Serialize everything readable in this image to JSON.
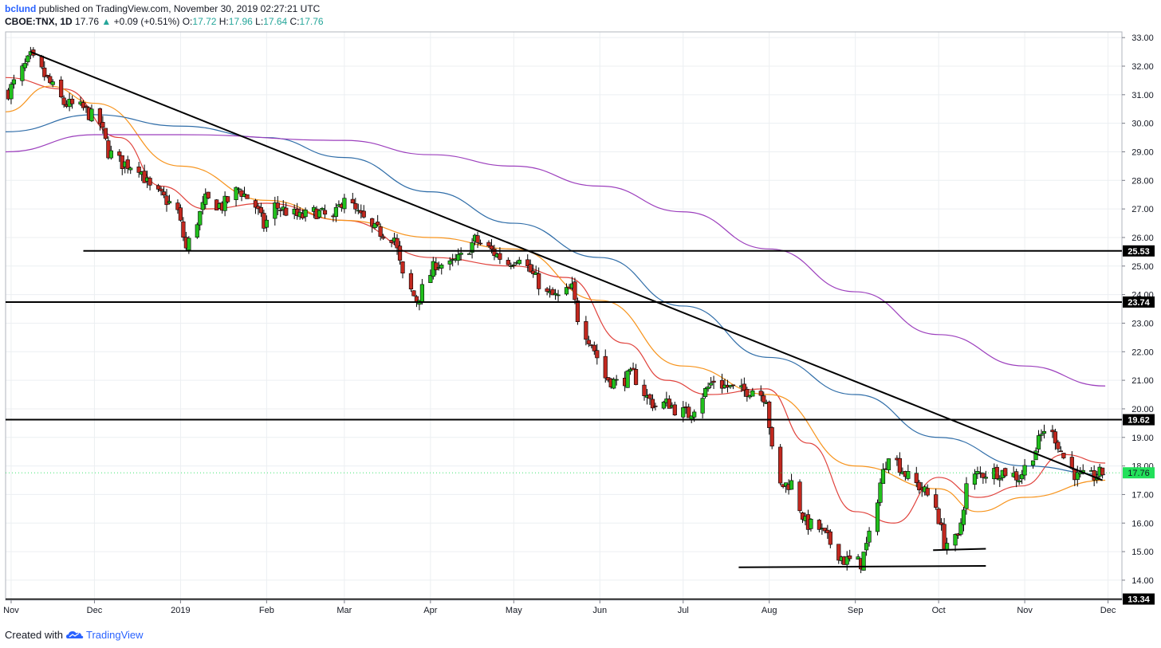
{
  "header": {
    "author": "bclund",
    "published": "published on TradingView.com, November 30, 2019 02:27:21 UTC",
    "symbol": "CBOE:TNX, 1D",
    "last": "17.76",
    "change": "+0.09 (+0.51%)",
    "o_label": "O:",
    "o": "17.72",
    "h_label": "H:",
    "h": "17.96",
    "l_label": "L:",
    "l": "17.64",
    "c_label": "C:",
    "c": "17.76"
  },
  "footer": {
    "created_with": "Created with",
    "brand": "TradingView"
  },
  "colors": {
    "up": "#22c11d",
    "down": "#c2281f",
    "ma_red": "#e0423c",
    "ma_orange": "#f7941d",
    "ma_blue": "#2f6da8",
    "ma_purple": "#9c3fbd",
    "level": "#000000",
    "last_badge": "#22e05a",
    "grid": "#eceff2"
  },
  "chart_data": {
    "type": "candlestick",
    "grid": true,
    "price_axis": "right",
    "y_ticks": [
      "14.00",
      "15.00",
      "16.00",
      "17.00",
      "18.00",
      "19.00",
      "20.00",
      "21.00",
      "22.00",
      "23.00",
      "24.00",
      "25.00",
      "26.00",
      "27.00",
      "28.00",
      "29.00",
      "30.00",
      "31.00",
      "32.00",
      "33.00"
    ],
    "x_ticks": [
      {
        "label": "Nov",
        "date": "2018-11-01"
      },
      {
        "label": "Dec",
        "date": "2018-12-01"
      },
      {
        "label": "2019",
        "date": "2019-01-01"
      },
      {
        "label": "Feb",
        "date": "2019-02-01"
      },
      {
        "label": "Mar",
        "date": "2019-03-01"
      },
      {
        "label": "Apr",
        "date": "2019-04-01"
      },
      {
        "label": "May",
        "date": "2019-05-01"
      },
      {
        "label": "Jun",
        "date": "2019-06-01"
      },
      {
        "label": "Jul",
        "date": "2019-07-01"
      },
      {
        "label": "Aug",
        "date": "2019-08-01"
      },
      {
        "label": "Sep",
        "date": "2019-09-01"
      },
      {
        "label": "Oct",
        "date": "2019-10-01"
      },
      {
        "label": "Nov",
        "date": "2019-11-01"
      },
      {
        "label": "Dec",
        "date": "2019-12-01"
      }
    ],
    "ylim": [
      13.3,
      33.2
    ],
    "xlim": [
      "2018-10-30",
      "2019-12-06"
    ],
    "levels": [
      {
        "value": 25.53,
        "label": "25.53",
        "from": "2018-11-27"
      },
      {
        "value": 23.74,
        "label": "23.74",
        "from": "2018-10-30"
      },
      {
        "value": 19.62,
        "label": "19.62",
        "from": "2018-10-30"
      },
      {
        "value": 13.34,
        "label": "13.34",
        "from": "2018-10-30"
      }
    ],
    "last_price": {
      "value": 17.76,
      "label": "17.76"
    },
    "support_lines": [
      {
        "x1": "2019-07-21",
        "y1": 14.45,
        "x2": "2019-10-18",
        "y2": 14.5
      },
      {
        "x1": "2019-09-29",
        "y1": 15.05,
        "x2": "2019-10-18",
        "y2": 15.1
      }
    ],
    "trendline": {
      "x1": "2018-11-08",
      "y1": 32.5,
      "x2": "2019-11-29",
      "y2": 17.5
    },
    "anchors": [
      [
        "2018-10-31",
        31.1
      ],
      [
        "2018-11-08",
        32.3
      ],
      [
        "2018-11-12",
        31.8
      ],
      [
        "2018-11-20",
        30.7
      ],
      [
        "2018-11-27",
        30.5
      ],
      [
        "2018-12-03",
        30.0
      ],
      [
        "2018-12-06",
        29.0
      ],
      [
        "2018-12-11",
        28.6
      ],
      [
        "2018-12-17",
        28.5
      ],
      [
        "2018-12-21",
        27.7
      ],
      [
        "2018-12-27",
        27.3
      ],
      [
        "2018-12-31",
        26.9
      ],
      [
        "2019-01-03",
        25.6
      ],
      [
        "2019-01-07",
        26.6
      ],
      [
        "2019-01-10",
        27.3
      ],
      [
        "2019-01-16",
        27.1
      ],
      [
        "2019-01-22",
        27.7
      ],
      [
        "2019-01-28",
        27.1
      ],
      [
        "2019-01-31",
        26.4
      ],
      [
        "2019-02-04",
        27.1
      ],
      [
        "2019-02-13",
        26.7
      ],
      [
        "2019-02-19",
        26.9
      ],
      [
        "2019-02-25",
        26.6
      ],
      [
        "2019-03-01",
        27.5
      ],
      [
        "2019-03-05",
        26.9
      ],
      [
        "2019-03-11",
        26.3
      ],
      [
        "2019-03-19",
        26.0
      ],
      [
        "2019-03-22",
        24.6
      ],
      [
        "2019-03-27",
        23.8
      ],
      [
        "2019-04-03",
        25.1
      ],
      [
        "2019-04-08",
        25.0
      ],
      [
        "2019-04-12",
        25.3
      ],
      [
        "2019-04-17",
        25.9
      ],
      [
        "2019-04-22",
        25.6
      ],
      [
        "2019-04-29",
        25.1
      ],
      [
        "2019-05-03",
        25.4
      ],
      [
        "2019-05-07",
        24.8
      ],
      [
        "2019-05-13",
        24.0
      ],
      [
        "2019-05-17",
        23.9
      ],
      [
        "2019-05-22",
        24.2
      ],
      [
        "2019-05-24",
        23.2
      ],
      [
        "2019-05-29",
        22.3
      ],
      [
        "2019-06-03",
        21.1
      ],
      [
        "2019-06-07",
        20.9
      ],
      [
        "2019-06-13",
        21.2
      ],
      [
        "2019-06-18",
        20.4
      ],
      [
        "2019-06-21",
        20.1
      ],
      [
        "2019-06-26",
        20.2
      ],
      [
        "2019-06-28",
        20.0
      ],
      [
        "2019-07-03",
        19.8
      ],
      [
        "2019-07-08",
        20.5
      ],
      [
        "2019-07-12",
        21.0
      ],
      [
        "2019-07-16",
        20.8
      ],
      [
        "2019-07-22",
        20.6
      ],
      [
        "2019-07-26",
        20.7
      ],
      [
        "2019-07-31",
        20.4
      ],
      [
        "2019-08-02",
        18.5
      ],
      [
        "2019-08-05",
        17.3
      ],
      [
        "2019-08-09",
        17.4
      ],
      [
        "2019-08-14",
        16.0
      ],
      [
        "2019-08-19",
        15.8
      ],
      [
        "2019-08-23",
        15.3
      ],
      [
        "2019-08-28",
        14.7
      ],
      [
        "2019-09-03",
        14.6
      ],
      [
        "2019-09-06",
        15.5
      ],
      [
        "2019-09-10",
        17.4
      ],
      [
        "2019-09-13",
        18.5
      ],
      [
        "2019-09-17",
        18.0
      ],
      [
        "2019-09-20",
        17.6
      ],
      [
        "2019-09-25",
        17.2
      ],
      [
        "2019-09-30",
        16.6
      ],
      [
        "2019-10-03",
        15.3
      ],
      [
        "2019-10-08",
        15.4
      ],
      [
        "2019-10-11",
        17.3
      ],
      [
        "2019-10-15",
        17.7
      ],
      [
        "2019-10-21",
        17.8
      ],
      [
        "2019-10-25",
        17.8
      ],
      [
        "2019-10-30",
        17.6
      ],
      [
        "2019-11-05",
        18.6
      ],
      [
        "2019-11-08",
        19.3
      ],
      [
        "2019-11-12",
        19.0
      ],
      [
        "2019-11-15",
        18.3
      ],
      [
        "2019-11-20",
        17.6
      ],
      [
        "2019-11-25",
        17.6
      ],
      [
        "2019-11-29",
        17.76
      ]
    ],
    "moving_averages": [
      {
        "color": "#e0423c",
        "points": [
          [
            "2018-10-30",
            31.6
          ],
          [
            "2018-11-20",
            31.2
          ],
          [
            "2018-12-10",
            29.5
          ],
          [
            "2018-12-25",
            27.8
          ],
          [
            "2019-01-10",
            27.0
          ],
          [
            "2019-02-01",
            27.2
          ],
          [
            "2019-03-01",
            26.6
          ],
          [
            "2019-04-01",
            25.3
          ],
          [
            "2019-05-01",
            25.0
          ],
          [
            "2019-05-20",
            24.6
          ],
          [
            "2019-06-10",
            22.3
          ],
          [
            "2019-06-25",
            21.0
          ],
          [
            "2019-07-10",
            20.5
          ],
          [
            "2019-07-31",
            20.7
          ],
          [
            "2019-08-15",
            18.8
          ],
          [
            "2019-09-01",
            16.4
          ],
          [
            "2019-09-15",
            16.0
          ],
          [
            "2019-10-01",
            17.6
          ],
          [
            "2019-10-15",
            16.9
          ],
          [
            "2019-10-31",
            17.3
          ],
          [
            "2019-11-15",
            18.4
          ],
          [
            "2019-11-30",
            18.1
          ]
        ]
      },
      {
        "color": "#f7941d",
        "points": [
          [
            "2018-10-30",
            30.4
          ],
          [
            "2018-11-15",
            31.3
          ],
          [
            "2018-12-01",
            30.7
          ],
          [
            "2019-01-01",
            28.5
          ],
          [
            "2019-02-01",
            27.3
          ],
          [
            "2019-03-01",
            26.6
          ],
          [
            "2019-04-01",
            26.0
          ],
          [
            "2019-05-01",
            25.6
          ],
          [
            "2019-06-01",
            23.8
          ],
          [
            "2019-07-01",
            21.5
          ],
          [
            "2019-08-01",
            20.5
          ],
          [
            "2019-09-01",
            18.0
          ],
          [
            "2019-10-01",
            17.2
          ],
          [
            "2019-10-15",
            16.4
          ],
          [
            "2019-11-01",
            16.9
          ],
          [
            "2019-11-30",
            17.5
          ]
        ]
      },
      {
        "color": "#2f6da8",
        "points": [
          [
            "2018-10-30",
            29.7
          ],
          [
            "2018-12-01",
            30.3
          ],
          [
            "2019-01-01",
            29.9
          ],
          [
            "2019-02-01",
            29.5
          ],
          [
            "2019-03-01",
            28.8
          ],
          [
            "2019-04-01",
            27.6
          ],
          [
            "2019-05-01",
            26.5
          ],
          [
            "2019-06-01",
            25.3
          ],
          [
            "2019-07-01",
            23.6
          ],
          [
            "2019-08-01",
            21.8
          ],
          [
            "2019-09-01",
            20.5
          ],
          [
            "2019-10-01",
            19.0
          ],
          [
            "2019-11-01",
            18.0
          ],
          [
            "2019-11-30",
            17.7
          ]
        ]
      },
      {
        "color": "#9c3fbd",
        "points": [
          [
            "2018-10-30",
            29.0
          ],
          [
            "2018-12-01",
            29.6
          ],
          [
            "2019-01-01",
            29.6
          ],
          [
            "2019-03-01",
            29.4
          ],
          [
            "2019-04-01",
            28.9
          ],
          [
            "2019-05-01",
            28.5
          ],
          [
            "2019-06-01",
            27.8
          ],
          [
            "2019-07-01",
            26.9
          ],
          [
            "2019-08-01",
            25.6
          ],
          [
            "2019-09-01",
            24.1
          ],
          [
            "2019-10-01",
            22.6
          ],
          [
            "2019-11-01",
            21.5
          ],
          [
            "2019-11-30",
            20.8
          ]
        ]
      }
    ]
  }
}
